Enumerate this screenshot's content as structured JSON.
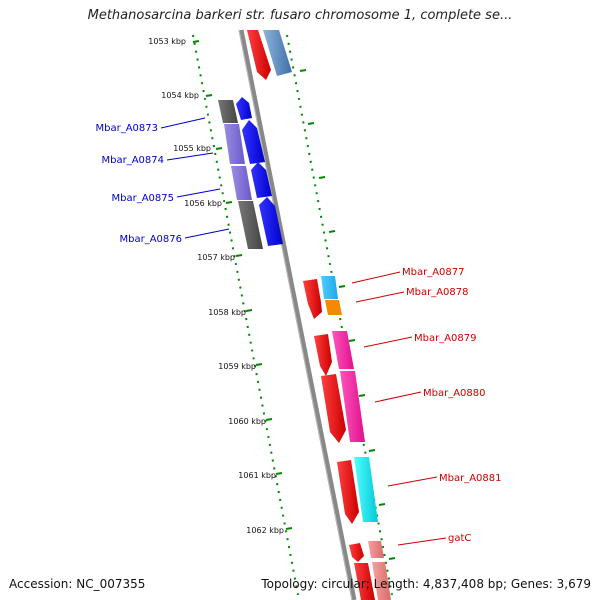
{
  "title": "Methanosarcina barkeri str. fusaro chromosome 1, complete se...",
  "footer": {
    "accession": "Accession: NC_007355",
    "topology": "Topology: circular; Length: 4,837,408 bp; Genes: 3,679"
  },
  "kbp_labels": [
    "1053 kbp",
    "1054 kbp",
    "1055 kbp",
    "1056 kbp",
    "1057 kbp",
    "1058 kbp",
    "1059 kbp",
    "1060 kbp",
    "1061 kbp",
    "1062 kbp"
  ],
  "genes_left": [
    {
      "name": "Mbar_A0873",
      "color": "#0000cc"
    },
    {
      "name": "Mbar_A0874",
      "color": "#0000cc"
    },
    {
      "name": "Mbar_A0875",
      "color": "#0000cc"
    },
    {
      "name": "Mbar_A0876",
      "color": "#0000cc"
    }
  ],
  "genes_right": [
    {
      "name": "Mbar_A0877",
      "color": "#cc0000"
    },
    {
      "name": "Mbar_A0878",
      "color": "#cc0000"
    },
    {
      "name": "Mbar_A0879",
      "color": "#cc0000"
    },
    {
      "name": "Mbar_A0880",
      "color": "#cc0000"
    },
    {
      "name": "Mbar_A0881",
      "color": "#cc0000"
    },
    {
      "name": "gatC",
      "color": "#cc0000"
    }
  ],
  "colors": {
    "forward_strand": "#ff0000",
    "reverse_strand": "#0000ff",
    "backbone": "#888888",
    "ruler": "#008800"
  }
}
